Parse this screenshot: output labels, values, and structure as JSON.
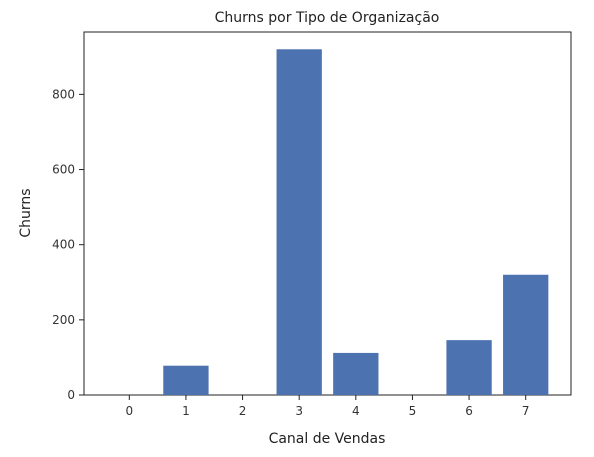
{
  "chart_data": {
    "type": "bar",
    "title": "Churns por Tipo de Organização",
    "xlabel": "Canal de Vendas",
    "ylabel": "Churns",
    "categories": [
      "0",
      "1",
      "2",
      "3",
      "4",
      "5",
      "6",
      "7"
    ],
    "values": [
      0,
      78,
      0,
      920,
      112,
      0,
      146,
      320
    ],
    "ylim": [
      0,
      966
    ],
    "yticks": [
      "0",
      "200",
      "400",
      "600",
      "800"
    ],
    "grid": false,
    "bar_color": "#4c72b0"
  }
}
